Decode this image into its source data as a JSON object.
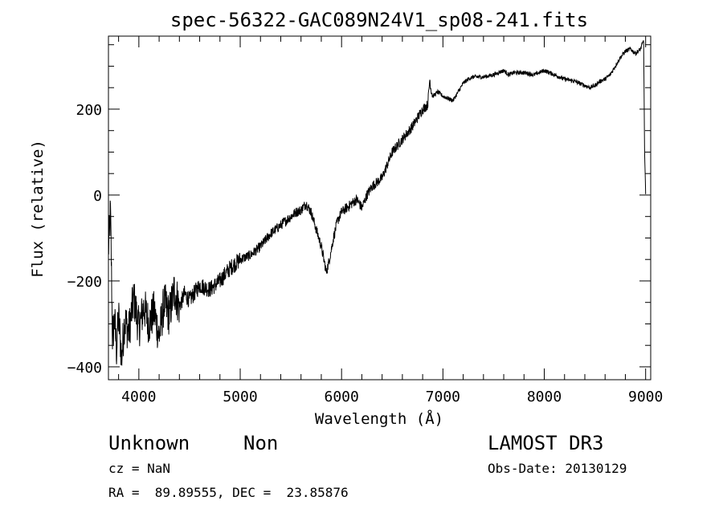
{
  "chart_data": {
    "type": "line",
    "title": "spec-56322-GAC089N24V1_sp08-241.fits",
    "xlabel": "Wavelength (Å)",
    "ylabel": "Flux (relative)",
    "xlim": [
      3700,
      9050
    ],
    "ylim": [
      -430,
      370
    ],
    "xticks": [
      4000,
      5000,
      6000,
      7000,
      8000,
      9000
    ],
    "xtick_labels": [
      "4000",
      "5000",
      "6000",
      "7000",
      "8000",
      "9000"
    ],
    "yticks": [
      -400,
      -200,
      0,
      200
    ],
    "ytick_labels": [
      "−400",
      "−200",
      "0",
      "200"
    ],
    "grid": false,
    "legend": "none",
    "series": [
      {
        "name": "flux",
        "x": [
          3700,
          3720,
          3740,
          3760,
          3780,
          3800,
          3830,
          3860,
          3900,
          3950,
          4000,
          4050,
          4100,
          4150,
          4200,
          4250,
          4300,
          4350,
          4400,
          4450,
          4500,
          4600,
          4700,
          4800,
          4900,
          5000,
          5100,
          5200,
          5300,
          5400,
          5500,
          5550,
          5600,
          5650,
          5700,
          5750,
          5800,
          5850,
          5880,
          5920,
          5960,
          6000,
          6050,
          6100,
          6150,
          6200,
          6250,
          6300,
          6400,
          6500,
          6600,
          6700,
          6750,
          6800,
          6850,
          6870,
          6880,
          6900,
          6950,
          7000,
          7050,
          7100,
          7150,
          7200,
          7250,
          7300,
          7400,
          7500,
          7550,
          7600,
          7650,
          7700,
          7800,
          7900,
          8000,
          8100,
          8200,
          8300,
          8400,
          8450,
          8500,
          8550,
          8600,
          8650,
          8700,
          8750,
          8800,
          8850,
          8900,
          8950,
          8980,
          8990,
          9000
        ],
        "y": [
          -130,
          -40,
          -330,
          -290,
          -360,
          -280,
          -380,
          -290,
          -320,
          -240,
          -310,
          -260,
          -300,
          -270,
          -330,
          -250,
          -280,
          -220,
          -260,
          -230,
          -245,
          -210,
          -220,
          -200,
          -170,
          -150,
          -140,
          -120,
          -90,
          -70,
          -50,
          -40,
          -35,
          -20,
          -40,
          -80,
          -120,
          -180,
          -150,
          -100,
          -60,
          -40,
          -30,
          -20,
          -10,
          -30,
          0,
          20,
          40,
          100,
          130,
          160,
          180,
          200,
          210,
          270,
          250,
          230,
          240,
          230,
          225,
          220,
          240,
          260,
          270,
          275,
          275,
          280,
          285,
          290,
          280,
          285,
          285,
          280,
          290,
          280,
          270,
          265,
          255,
          250,
          255,
          265,
          270,
          280,
          300,
          320,
          335,
          340,
          330,
          340,
          360,
          100,
          0
        ]
      }
    ]
  },
  "footer": {
    "object_class": "Unknown",
    "subclass": "Non",
    "survey": "LAMOST DR3",
    "cz": "cz = NaN",
    "obs_date": "Obs-Date: 20130129",
    "coords": "RA =  89.89555, DEC =  23.85876"
  }
}
